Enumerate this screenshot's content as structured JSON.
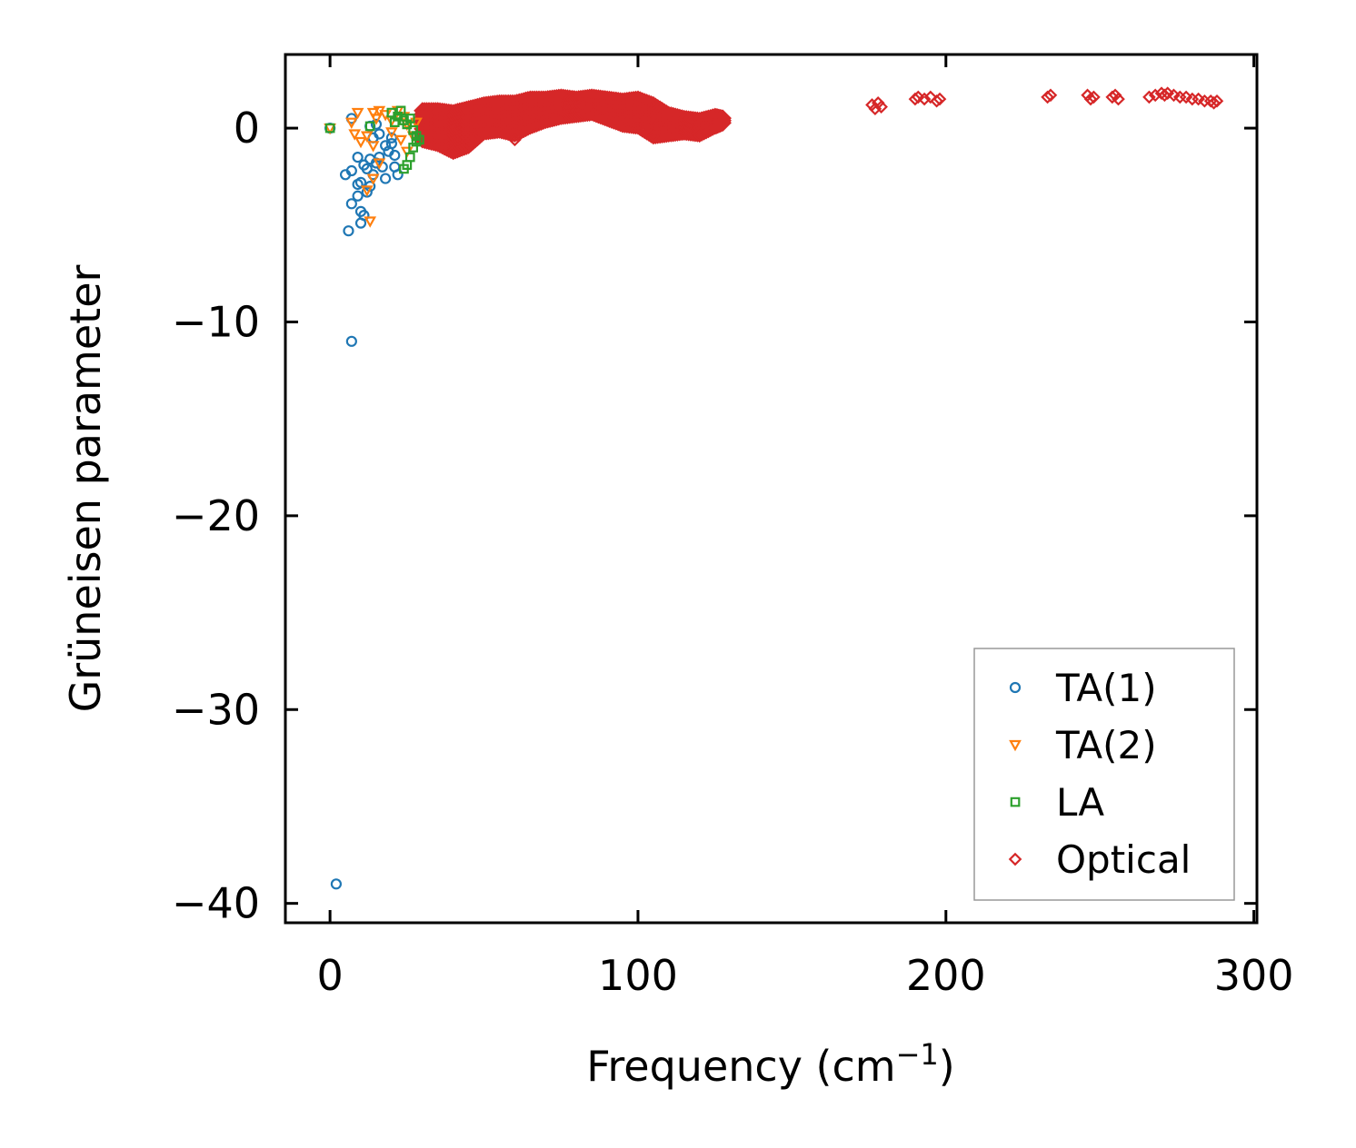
{
  "chart_data": {
    "type": "scatter",
    "title": "",
    "xlabel": "Frequency (cm",
    "xlabel_sup": "−1",
    "xlabel_close": ")",
    "ylabel": "Grüneisen parameter",
    "xlim": [
      -14.5,
      301
    ],
    "ylim": [
      -41,
      3.8
    ],
    "xticks": [
      0,
      100,
      200,
      300
    ],
    "xtick_labels": [
      "0",
      "100",
      "200",
      "300"
    ],
    "yticks": [
      0,
      -10,
      -20,
      -30,
      -40
    ],
    "ytick_labels": [
      "0",
      "−10",
      "−20",
      "−30",
      "−40"
    ],
    "grid": false,
    "legend_position": "lower-right",
    "series": [
      {
        "name": "TA(1)",
        "color": "#1f77b4",
        "marker": "circle",
        "points": [
          [
            2,
            -39
          ],
          [
            7,
            -11
          ],
          [
            6,
            -5.3
          ],
          [
            10,
            -4.9
          ],
          [
            10,
            -4.3
          ],
          [
            11,
            -4.5
          ],
          [
            7,
            -3.9
          ],
          [
            9,
            -3.5
          ],
          [
            12,
            -3.3
          ],
          [
            13,
            -3.0
          ],
          [
            9,
            -2.9
          ],
          [
            10,
            -2.8
          ],
          [
            5,
            -2.4
          ],
          [
            7,
            -2.2
          ],
          [
            9,
            -1.5
          ],
          [
            11,
            -1.9
          ],
          [
            12,
            -2.1
          ],
          [
            13,
            -1.6
          ],
          [
            14,
            -2.4
          ],
          [
            15,
            -1.8
          ],
          [
            16,
            -1.5
          ],
          [
            17,
            -2.0
          ],
          [
            18,
            -2.6
          ],
          [
            19,
            -1.2
          ],
          [
            20,
            -0.8
          ],
          [
            21,
            -2.0
          ],
          [
            22,
            -2.4
          ],
          [
            14,
            -0.5
          ],
          [
            16,
            -0.3
          ],
          [
            18,
            -0.9
          ],
          [
            20,
            -0.5
          ],
          [
            21,
            -1.4
          ],
          [
            13,
            0.1
          ],
          [
            7,
            0.5
          ],
          [
            15,
            0.2
          ],
          [
            0,
            0
          ]
        ]
      },
      {
        "name": "TA(2)",
        "color": "#ff7f0e",
        "marker": "triangle-down",
        "points": [
          [
            13,
            -4.8
          ],
          [
            12,
            -3.2
          ],
          [
            14,
            -2.6
          ],
          [
            16,
            -1.8
          ],
          [
            8,
            -0.3
          ],
          [
            10,
            -0.7
          ],
          [
            12,
            -0.4
          ],
          [
            14,
            -0.9
          ],
          [
            7,
            0.3
          ],
          [
            9,
            0.8
          ],
          [
            14,
            0.8
          ],
          [
            15,
            0.5
          ],
          [
            16,
            0.9
          ],
          [
            18,
            0.7
          ],
          [
            20,
            0.4
          ],
          [
            22,
            0.9
          ],
          [
            24,
            0.6
          ],
          [
            25,
            0.2
          ],
          [
            20,
            -0.2
          ],
          [
            23,
            -0.6
          ],
          [
            25,
            -1.2
          ],
          [
            27,
            -0.4
          ],
          [
            28,
            0.3
          ],
          [
            0,
            0
          ]
        ]
      },
      {
        "name": "LA",
        "color": "#2ca02c",
        "marker": "square",
        "points": [
          [
            20,
            0.8
          ],
          [
            22,
            0.6
          ],
          [
            24,
            0.4
          ],
          [
            25,
            0.2
          ],
          [
            26,
            0.5
          ],
          [
            27,
            -0.1
          ],
          [
            28,
            -0.4
          ],
          [
            29,
            -0.6
          ],
          [
            25,
            -1.9
          ],
          [
            26,
            -1.5
          ],
          [
            24,
            -2.1
          ],
          [
            27,
            -1.0
          ],
          [
            28,
            -0.7
          ],
          [
            13,
            0.1
          ],
          [
            23,
            0.9
          ],
          [
            21,
            0.3
          ],
          [
            0,
            0
          ]
        ]
      },
      {
        "name": "Optical",
        "color": "#d62728",
        "marker": "diamond",
        "band": {
          "x": [
            30,
            35,
            40,
            45,
            50,
            55,
            60,
            65,
            70,
            75,
            80,
            85,
            90,
            95,
            100,
            105,
            110,
            115,
            120,
            125,
            128
          ],
          "upper": [
            0.9,
            0.9,
            0.8,
            1.0,
            1.2,
            1.3,
            1.3,
            1.5,
            1.5,
            1.6,
            1.5,
            1.6,
            1.5,
            1.4,
            1.5,
            1.2,
            0.7,
            0.5,
            0.4,
            0.6,
            0.5
          ],
          "lower": [
            -0.6,
            -0.8,
            -1.2,
            -0.9,
            -0.2,
            -0.1,
            -0.3,
            0.1,
            0.4,
            0.6,
            0.7,
            0.8,
            0.5,
            0.2,
            0.1,
            -0.4,
            -0.3,
            -0.2,
            -0.3,
            0.1,
            0.3
          ]
        },
        "points": [
          [
            40,
            -1.2
          ],
          [
            60,
            -0.6
          ],
          [
            105,
            -0.4
          ],
          [
            120,
            -0.4
          ],
          [
            176,
            1.2
          ],
          [
            177,
            1.0
          ],
          [
            178,
            1.3
          ],
          [
            179,
            1.1
          ],
          [
            190,
            1.5
          ],
          [
            191,
            1.6
          ],
          [
            193,
            1.5
          ],
          [
            195,
            1.6
          ],
          [
            197,
            1.4
          ],
          [
            198,
            1.5
          ],
          [
            233,
            1.6
          ],
          [
            234,
            1.7
          ],
          [
            246,
            1.7
          ],
          [
            247,
            1.5
          ],
          [
            248,
            1.6
          ],
          [
            254,
            1.6
          ],
          [
            255,
            1.7
          ],
          [
            256,
            1.5
          ],
          [
            266,
            1.6
          ],
          [
            268,
            1.7
          ],
          [
            270,
            1.8
          ],
          [
            271,
            1.7
          ],
          [
            272,
            1.8
          ],
          [
            274,
            1.7
          ],
          [
            276,
            1.6
          ],
          [
            278,
            1.6
          ],
          [
            280,
            1.5
          ],
          [
            282,
            1.5
          ],
          [
            284,
            1.4
          ],
          [
            286,
            1.4
          ],
          [
            287,
            1.3
          ],
          [
            288,
            1.4
          ]
        ]
      }
    ]
  }
}
